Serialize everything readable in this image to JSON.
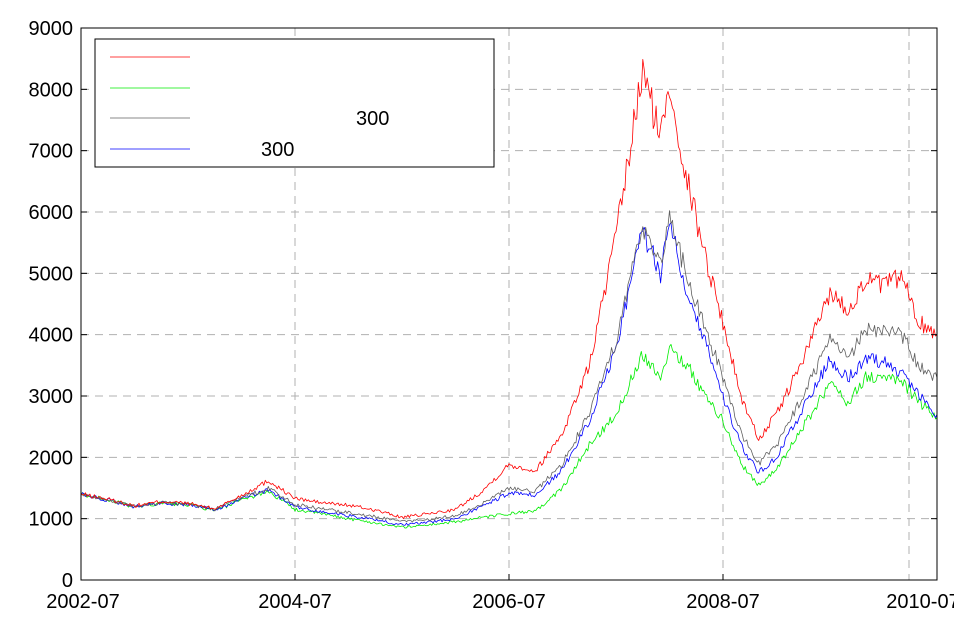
{
  "chart_data": {
    "type": "line",
    "title": "",
    "xlabel": "",
    "ylabel": "",
    "xlim": [
      "2002-07",
      "2010-07"
    ],
    "ylim": [
      0,
      9000
    ],
    "xticks": [
      "2002-07",
      "2004-07",
      "2006-07",
      "2008-07",
      "2010-07"
    ],
    "yticks": [
      0,
      1000,
      2000,
      3000,
      4000,
      5000,
      6000,
      7000,
      8000,
      9000
    ],
    "grid": true,
    "legend": {
      "position": "top-left"
    },
    "series": [
      {
        "name": "",
        "color": "#ff0000",
        "points": [
          [
            "2002-07",
            1400
          ],
          [
            "2002-10",
            1320
          ],
          [
            "2003-01",
            1210
          ],
          [
            "2003-04",
            1280
          ],
          [
            "2003-07",
            1250
          ],
          [
            "2003-10",
            1160
          ],
          [
            "2004-01",
            1380
          ],
          [
            "2004-04",
            1620
          ],
          [
            "2004-07",
            1330
          ],
          [
            "2004-10",
            1260
          ],
          [
            "2005-01",
            1220
          ],
          [
            "2005-04",
            1140
          ],
          [
            "2005-07",
            1020
          ],
          [
            "2005-10",
            1080
          ],
          [
            "2006-01",
            1150
          ],
          [
            "2006-04",
            1450
          ],
          [
            "2006-07",
            1880
          ],
          [
            "2006-10",
            1780
          ],
          [
            "2007-01",
            2400
          ],
          [
            "2007-04",
            3500
          ],
          [
            "2007-07",
            5600
          ],
          [
            "2007-10",
            8300
          ],
          [
            "2007-12",
            7200
          ],
          [
            "2008-01",
            8100
          ],
          [
            "2008-03",
            6500
          ],
          [
            "2008-05",
            5300
          ],
          [
            "2008-07",
            4200
          ],
          [
            "2008-09",
            3000
          ],
          [
            "2008-11",
            2300
          ],
          [
            "2009-01",
            2700
          ],
          [
            "2009-04",
            3600
          ],
          [
            "2009-07",
            4700
          ],
          [
            "2009-09",
            4400
          ],
          [
            "2009-11",
            4900
          ],
          [
            "2010-01",
            4800
          ],
          [
            "2010-03",
            4950
          ],
          [
            "2010-05",
            4200
          ],
          [
            "2010-07",
            4000
          ]
        ]
      },
      {
        "name": "",
        "color": "#00ee00",
        "points": [
          [
            "2002-07",
            1400
          ],
          [
            "2002-10",
            1310
          ],
          [
            "2003-01",
            1190
          ],
          [
            "2003-04",
            1250
          ],
          [
            "2003-07",
            1230
          ],
          [
            "2003-10",
            1130
          ],
          [
            "2004-01",
            1300
          ],
          [
            "2004-04",
            1450
          ],
          [
            "2004-07",
            1150
          ],
          [
            "2004-10",
            1080
          ],
          [
            "2005-01",
            1000
          ],
          [
            "2005-04",
            930
          ],
          [
            "2005-07",
            860
          ],
          [
            "2005-10",
            900
          ],
          [
            "2006-01",
            950
          ],
          [
            "2006-04",
            1020
          ],
          [
            "2006-07",
            1080
          ],
          [
            "2006-10",
            1120
          ],
          [
            "2007-01",
            1500
          ],
          [
            "2007-04",
            2200
          ],
          [
            "2007-07",
            2700
          ],
          [
            "2007-10",
            3700
          ],
          [
            "2007-12",
            3300
          ],
          [
            "2008-01",
            3800
          ],
          [
            "2008-03",
            3500
          ],
          [
            "2008-05",
            3000
          ],
          [
            "2008-07",
            2600
          ],
          [
            "2008-09",
            1900
          ],
          [
            "2008-11",
            1550
          ],
          [
            "2009-01",
            1800
          ],
          [
            "2009-04",
            2500
          ],
          [
            "2009-07",
            3200
          ],
          [
            "2009-09",
            2900
          ],
          [
            "2009-11",
            3300
          ],
          [
            "2010-01",
            3300
          ],
          [
            "2010-03",
            3250
          ],
          [
            "2010-05",
            2900
          ],
          [
            "2010-07",
            2650
          ]
        ]
      },
      {
        "name": "300",
        "color": "#606060",
        "points": [
          [
            "2002-07",
            1400
          ],
          [
            "2002-10",
            1310
          ],
          [
            "2003-01",
            1200
          ],
          [
            "2003-04",
            1260
          ],
          [
            "2003-07",
            1240
          ],
          [
            "2003-10",
            1150
          ],
          [
            "2004-01",
            1340
          ],
          [
            "2004-04",
            1500
          ],
          [
            "2004-07",
            1230
          ],
          [
            "2004-10",
            1160
          ],
          [
            "2005-01",
            1100
          ],
          [
            "2005-04",
            1030
          ],
          [
            "2005-07",
            950
          ],
          [
            "2005-10",
            990
          ],
          [
            "2006-01",
            1050
          ],
          [
            "2006-04",
            1250
          ],
          [
            "2006-07",
            1500
          ],
          [
            "2006-10",
            1450
          ],
          [
            "2007-01",
            1900
          ],
          [
            "2007-04",
            2700
          ],
          [
            "2007-07",
            3900
          ],
          [
            "2007-10",
            5800
          ],
          [
            "2007-12",
            5100
          ],
          [
            "2008-01",
            6000
          ],
          [
            "2008-03",
            4900
          ],
          [
            "2008-05",
            4100
          ],
          [
            "2008-07",
            3300
          ],
          [
            "2008-09",
            2400
          ],
          [
            "2008-11",
            1900
          ],
          [
            "2009-01",
            2200
          ],
          [
            "2009-04",
            3000
          ],
          [
            "2009-07",
            3900
          ],
          [
            "2009-09",
            3600
          ],
          [
            "2009-11",
            4100
          ],
          [
            "2010-01",
            4050
          ],
          [
            "2010-03",
            4000
          ],
          [
            "2010-05",
            3500
          ],
          [
            "2010-07",
            3300
          ]
        ]
      },
      {
        "name": "300",
        "color": "#0000ff",
        "points": [
          [
            "2002-07",
            1400
          ],
          [
            "2002-10",
            1305
          ],
          [
            "2003-01",
            1195
          ],
          [
            "2003-04",
            1255
          ],
          [
            "2003-07",
            1235
          ],
          [
            "2003-10",
            1140
          ],
          [
            "2004-01",
            1320
          ],
          [
            "2004-04",
            1470
          ],
          [
            "2004-07",
            1190
          ],
          [
            "2004-10",
            1110
          ],
          [
            "2005-01",
            1050
          ],
          [
            "2005-04",
            980
          ],
          [
            "2005-07",
            900
          ],
          [
            "2005-10",
            940
          ],
          [
            "2006-01",
            1000
          ],
          [
            "2006-04",
            1200
          ],
          [
            "2006-07",
            1420
          ],
          [
            "2006-10",
            1380
          ],
          [
            "2007-01",
            1800
          ],
          [
            "2007-04",
            2600
          ],
          [
            "2007-07",
            3800
          ],
          [
            "2007-10",
            5700
          ],
          [
            "2007-12",
            5000
          ],
          [
            "2008-01",
            5900
          ],
          [
            "2008-03",
            4700
          ],
          [
            "2008-05",
            3900
          ],
          [
            "2008-07",
            3000
          ],
          [
            "2008-09",
            2200
          ],
          [
            "2008-11",
            1750
          ],
          [
            "2009-01",
            2000
          ],
          [
            "2009-04",
            2800
          ],
          [
            "2009-07",
            3600
          ],
          [
            "2009-09",
            3300
          ],
          [
            "2009-11",
            3600
          ],
          [
            "2010-01",
            3550
          ],
          [
            "2010-03",
            3400
          ],
          [
            "2010-05",
            3000
          ],
          [
            "2010-07",
            2700
          ]
        ]
      }
    ]
  }
}
